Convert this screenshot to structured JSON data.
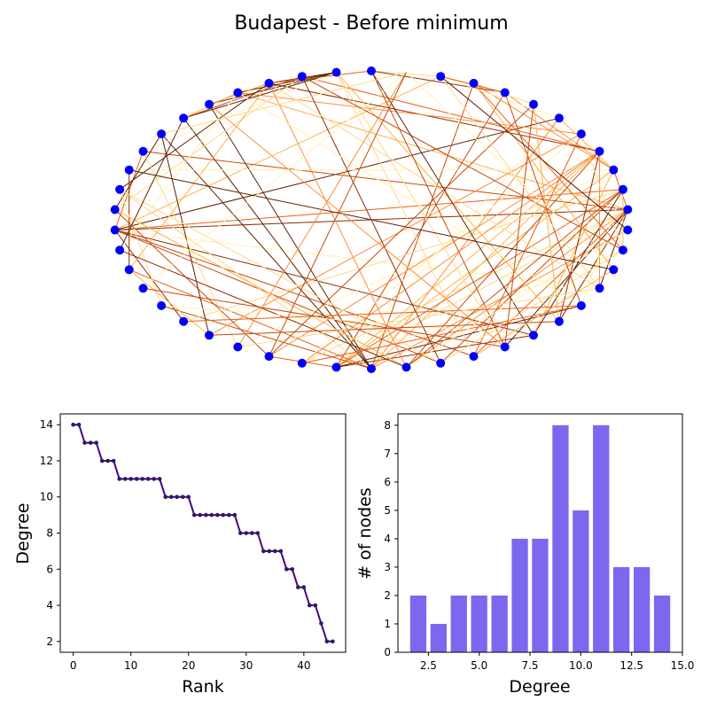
{
  "title": "Budapest - Before minimum",
  "colors": {
    "node": "#0000ff",
    "rank_line": "#4b0082",
    "rank_marker": "#2d1a66",
    "hist_bar": "#7b68ee",
    "edge_palette": [
      "#fff2b3",
      "#fed98e",
      "#feb24c",
      "#fd8d3c",
      "#e8611a",
      "#c64a0c",
      "#8c2d04",
      "#5e1f04"
    ]
  },
  "chart_data": [
    {
      "type": "network",
      "layout": "circular",
      "node_count": 46,
      "nodes_drawn": 45,
      "node_color": "#0000ff",
      "edge_colormap": "YlOrBr",
      "edges": [
        [
          12,
          25
        ],
        [
          12,
          26
        ],
        [
          12,
          28
        ],
        [
          12,
          31
        ],
        [
          12,
          36
        ],
        [
          12,
          40
        ],
        [
          12,
          44
        ],
        [
          12,
          17
        ],
        [
          12,
          8
        ],
        [
          12,
          35
        ],
        [
          22,
          40
        ],
        [
          22,
          33
        ],
        [
          22,
          35
        ],
        [
          22,
          37
        ],
        [
          22,
          38
        ],
        [
          22,
          42
        ],
        [
          22,
          28
        ],
        [
          22,
          30
        ],
        [
          22,
          20
        ],
        [
          23,
          5
        ],
        [
          23,
          6
        ],
        [
          23,
          7
        ],
        [
          23,
          10
        ],
        [
          23,
          14
        ],
        [
          23,
          16
        ],
        [
          23,
          38
        ],
        [
          23,
          40
        ],
        [
          23,
          43
        ],
        [
          23,
          34
        ],
        [
          35,
          21
        ],
        [
          35,
          24
        ],
        [
          35,
          26
        ],
        [
          35,
          29
        ],
        [
          35,
          31
        ],
        [
          35,
          37
        ],
        [
          35,
          4
        ],
        [
          35,
          8
        ],
        [
          35,
          27
        ],
        [
          36,
          22
        ],
        [
          36,
          24
        ],
        [
          36,
          25
        ],
        [
          36,
          28
        ],
        [
          36,
          30
        ],
        [
          36,
          33
        ],
        [
          36,
          17
        ],
        [
          37,
          40
        ],
        [
          37,
          42
        ],
        [
          37,
          43
        ],
        [
          37,
          9
        ],
        [
          37,
          28
        ],
        [
          37,
          19
        ],
        [
          38,
          20
        ],
        [
          38,
          21
        ],
        [
          38,
          24
        ],
        [
          38,
          31
        ],
        [
          38,
          3
        ],
        [
          38,
          2
        ],
        [
          38,
          29
        ],
        [
          39,
          21
        ],
        [
          39,
          26
        ],
        [
          39,
          18
        ],
        [
          39,
          33
        ],
        [
          39,
          4
        ],
        [
          1,
          3
        ],
        [
          1,
          4
        ],
        [
          1,
          5
        ],
        [
          1,
          6
        ],
        [
          1,
          8
        ],
        [
          1,
          26
        ],
        [
          1,
          27
        ],
        [
          1,
          29
        ],
        [
          2,
          6
        ],
        [
          2,
          11
        ],
        [
          2,
          25
        ],
        [
          2,
          33
        ],
        [
          3,
          5
        ],
        [
          3,
          10
        ],
        [
          3,
          14
        ],
        [
          3,
          24
        ],
        [
          3,
          31
        ],
        [
          4,
          6
        ],
        [
          4,
          13
        ],
        [
          4,
          30
        ],
        [
          0,
          44
        ],
        [
          0,
          42
        ],
        [
          0,
          28
        ],
        [
          0,
          27
        ],
        [
          0,
          3
        ],
        [
          7,
          18
        ],
        [
          7,
          11
        ],
        [
          8,
          19
        ],
        [
          9,
          14
        ],
        [
          9,
          32
        ],
        [
          10,
          16
        ],
        [
          10,
          25
        ],
        [
          11,
          24
        ],
        [
          11,
          20
        ],
        [
          13,
          24
        ],
        [
          14,
          18
        ],
        [
          15,
          27
        ],
        [
          16,
          28
        ],
        [
          17,
          30
        ],
        [
          18,
          29
        ],
        [
          19,
          31
        ],
        [
          20,
          41
        ],
        [
          21,
          30
        ],
        [
          24,
          34
        ],
        [
          25,
          33
        ],
        [
          26,
          32
        ],
        [
          27,
          41
        ],
        [
          29,
          41
        ],
        [
          30,
          42
        ],
        [
          31,
          44
        ],
        [
          32,
          43
        ],
        [
          33,
          43
        ],
        [
          34,
          44
        ],
        [
          40,
          44
        ],
        [
          41,
          43
        ],
        [
          42,
          44
        ],
        [
          5,
          27
        ],
        [
          6,
          13
        ],
        [
          7,
          45
        ],
        [
          15,
          45
        ],
        [
          19,
          45
        ],
        [
          20,
          45
        ],
        [
          32,
          45
        ]
      ]
    },
    {
      "type": "line",
      "xlabel": "Rank",
      "ylabel": "Degree",
      "x": [
        0,
        1,
        2,
        3,
        4,
        5,
        6,
        7,
        8,
        9,
        10,
        11,
        12,
        13,
        14,
        15,
        16,
        17,
        18,
        19,
        20,
        21,
        22,
        23,
        24,
        25,
        26,
        27,
        28,
        29,
        30,
        31,
        32,
        33,
        34,
        35,
        36,
        37,
        38,
        39,
        40,
        41,
        42,
        43,
        44,
        45
      ],
      "y": [
        14,
        14,
        13,
        13,
        13,
        12,
        12,
        12,
        11,
        11,
        11,
        11,
        11,
        11,
        11,
        11,
        10,
        10,
        10,
        10,
        10,
        9,
        9,
        9,
        9,
        9,
        9,
        9,
        9,
        8,
        8,
        8,
        8,
        7,
        7,
        7,
        7,
        6,
        6,
        5,
        5,
        4,
        4,
        3,
        2,
        2
      ],
      "xlim": [
        -2.25,
        47.25
      ],
      "ylim": [
        1.4,
        14.6
      ],
      "xticks": [
        0,
        10,
        20,
        30,
        40
      ],
      "yticks": [
        2,
        4,
        6,
        8,
        10,
        12,
        14
      ]
    },
    {
      "type": "bar",
      "xlabel": "Degree",
      "ylabel": "# of nodes",
      "x": [
        2,
        3,
        4,
        5,
        6,
        7,
        8,
        9,
        10,
        11,
        12,
        13,
        14
      ],
      "values": [
        2,
        1,
        2,
        2,
        2,
        4,
        4,
        8,
        5,
        8,
        3,
        3,
        2
      ],
      "xlim": [
        1.0,
        15.0
      ],
      "ylim": [
        0,
        8.4
      ],
      "xticks": [
        2.5,
        5.0,
        7.5,
        10.0,
        12.5,
        15.0
      ],
      "xtick_labels": [
        "2.5",
        "5.0",
        "7.5",
        "10.0",
        "12.5",
        "15.0"
      ],
      "yticks": [
        0,
        1,
        2,
        3,
        4,
        5,
        6,
        7,
        8
      ]
    }
  ]
}
